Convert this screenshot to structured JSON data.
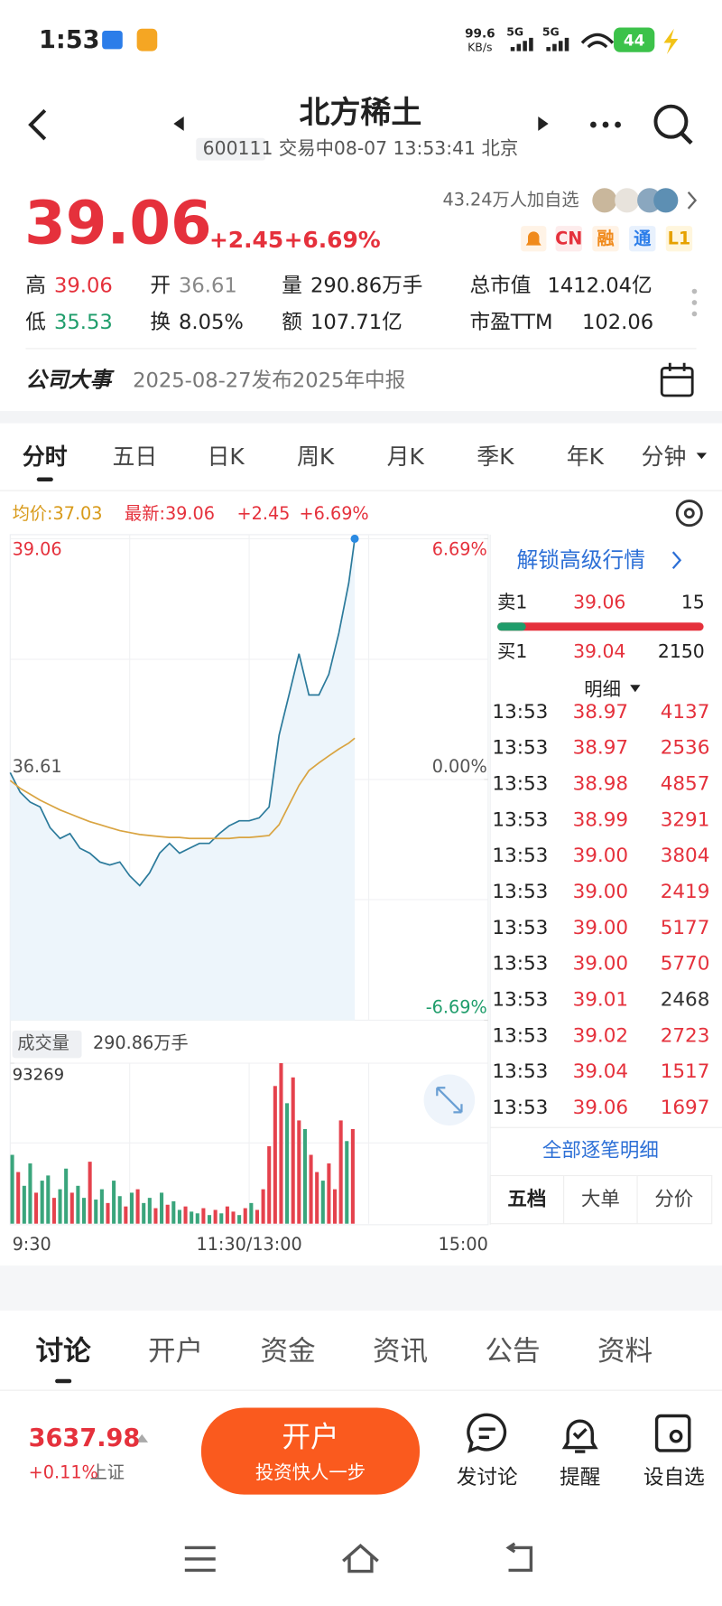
{
  "status_bar": {
    "time": "1:53",
    "speed": "99.6",
    "speed_unit": "KB/s",
    "network_1": "5G",
    "network_2": "5G",
    "battery": "44"
  },
  "header": {
    "title": "北方稀土",
    "subtitle": "600111 交易中08-07 13:53:41 北京"
  },
  "quote": {
    "price": "39.06",
    "change": "+2.45",
    "change_pct": "+6.69%",
    "followers": "43.24万人加自选",
    "badges": [
      "CN",
      "融",
      "通",
      "L1"
    ],
    "stats": [
      [
        {
          "label": "高",
          "value": "39.06"
        },
        {
          "label": "开",
          "value": "36.61"
        },
        {
          "label": "量",
          "value": "290.86万手"
        },
        {
          "label": "总市值",
          "value": "1412.04亿"
        }
      ],
      [
        {
          "label": "低",
          "value": "35.53"
        },
        {
          "label": "换",
          "value": "8.05%"
        },
        {
          "label": "额",
          "value": "107.71亿"
        },
        {
          "label": "市盈TTM",
          "value": "102.06"
        }
      ]
    ]
  },
  "event": {
    "label": "公司大事",
    "text": "2025-08-27发布2025年中报"
  },
  "period_tabs": [
    "分时",
    "五日",
    "日K",
    "周K",
    "月K",
    "季K",
    "年K",
    "分钟"
  ],
  "chart_data": [
    {
      "type": "line",
      "avg_label": "均价:37.03",
      "latest_label": "最新:39.06",
      "change": "+2.45",
      "change_pct": "+6.69%",
      "x": [
        "9:30",
        "9:35",
        "9:40",
        "9:45",
        "9:50",
        "9:55",
        "10:00",
        "10:05",
        "10:10",
        "10:15",
        "10:20",
        "10:25",
        "10:30",
        "10:35",
        "10:40",
        "10:45",
        "10:50",
        "10:55",
        "11:00",
        "11:05",
        "11:10",
        "11:15",
        "11:20",
        "11:25",
        "11:30",
        "13:05",
        "13:10",
        "13:15",
        "13:20",
        "13:25",
        "13:30",
        "13:35",
        "13:40",
        "13:45",
        "13:50",
        "13:53"
      ],
      "series": [
        {
          "color": "#2b7a9b",
          "values": [
            36.68,
            36.48,
            36.38,
            36.33,
            36.12,
            36.01,
            36.06,
            35.91,
            35.86,
            35.77,
            35.74,
            35.77,
            35.63,
            35.53,
            35.66,
            35.86,
            35.96,
            35.86,
            35.91,
            35.96,
            35.96,
            36.06,
            36.14,
            36.19,
            36.19,
            36.22,
            36.33,
            37.06,
            37.47,
            37.89,
            37.47,
            37.47,
            37.68,
            38.1,
            38.61,
            39.06
          ]
        },
        {
          "color": "#d9a441",
          "values": [
            36.6,
            36.52,
            36.46,
            36.4,
            36.35,
            36.3,
            36.26,
            36.22,
            36.18,
            36.15,
            36.12,
            36.09,
            36.07,
            36.05,
            36.04,
            36.03,
            36.02,
            36.02,
            36.01,
            36.01,
            36.01,
            36.01,
            36.01,
            36.02,
            36.02,
            36.03,
            36.04,
            36.15,
            36.35,
            36.55,
            36.7,
            36.78,
            36.85,
            36.92,
            36.98,
            37.03
          ]
        }
      ],
      "area_color": "#edf5fb",
      "up_color": "#e5313c",
      "down_color": "#1f9d6b",
      "ylim": [
        34.16,
        39.06
      ],
      "yticks": [
        39.06,
        36.61,
        34.16
      ],
      "y2lim": [
        -6.69,
        6.69
      ],
      "y2ticks": [
        {
          "value": 6.69,
          "label": "6.69%"
        },
        {
          "value": 0,
          "label": "0.00%"
        },
        {
          "value": -6.69,
          "label": "-6.69%"
        }
      ],
      "xticks": [
        "9:30",
        "11:30/13:00",
        "15:00"
      ]
    },
    {
      "type": "bar",
      "label": "成交量",
      "total": "290.86万手",
      "x": [
        "9:30",
        "9:33",
        "9:36",
        "9:39",
        "9:42",
        "9:45",
        "9:48",
        "9:51",
        "9:54",
        "9:57",
        "10:00",
        "10:03",
        "10:06",
        "10:09",
        "10:12",
        "10:15",
        "10:18",
        "10:21",
        "10:24",
        "10:27",
        "10:30",
        "10:33",
        "10:36",
        "10:39",
        "10:42",
        "10:45",
        "10:48",
        "10:51",
        "10:54",
        "10:57",
        "11:00",
        "11:03",
        "11:06",
        "11:09",
        "11:12",
        "11:15",
        "11:18",
        "11:21",
        "11:24",
        "11:27",
        "11:30",
        "13:03",
        "13:06",
        "13:09",
        "13:12",
        "13:15",
        "13:18",
        "13:21",
        "13:24",
        "13:27",
        "13:30",
        "13:33",
        "13:36",
        "13:39",
        "13:42",
        "13:45",
        "13:48",
        "13:51"
      ],
      "values": [
        40000,
        30000,
        22000,
        35000,
        18000,
        25000,
        28000,
        15000,
        20000,
        32000,
        18000,
        22000,
        15000,
        36000,
        14000,
        20000,
        12000,
        25000,
        16000,
        10000,
        18000,
        20000,
        12000,
        15000,
        9000,
        18000,
        11000,
        13000,
        8000,
        10000,
        7000,
        6000,
        9000,
        5000,
        8000,
        6000,
        10000,
        7000,
        5000,
        9000,
        12000,
        8000,
        20000,
        45000,
        80000,
        93269,
        70000,
        85000,
        60000,
        55000,
        40000,
        30000,
        25000,
        35000,
        20000,
        60000,
        48000,
        55000
      ],
      "colors": [
        "#3aa57c",
        "#e5424d",
        "#3aa57c",
        "#3aa57c",
        "#e5424d",
        "#3aa57c",
        "#3aa57c",
        "#e5424d",
        "#3aa57c",
        "#3aa57c",
        "#e5424d",
        "#3aa57c",
        "#3aa57c",
        "#e5424d",
        "#3aa57c",
        "#3aa57c",
        "#e5424d",
        "#3aa57c",
        "#3aa57c",
        "#e5424d",
        "#3aa57c",
        "#e5424d",
        "#3aa57c",
        "#3aa57c",
        "#e5424d",
        "#3aa57c",
        "#e5424d",
        "#3aa57c",
        "#3aa57c",
        "#e5424d",
        "#3aa57c",
        "#3aa57c",
        "#e5424d",
        "#3aa57c",
        "#e5424d",
        "#3aa57c",
        "#e5424d",
        "#e5424d",
        "#3aa57c",
        "#e5424d",
        "#3aa57c",
        "#e5424d",
        "#e5424d",
        "#e5424d",
        "#e5424d",
        "#e5424d",
        "#3aa57c",
        "#e5424d",
        "#e5424d",
        "#3aa57c",
        "#e5424d",
        "#e5424d",
        "#3aa57c",
        "#e5424d",
        "#e5424d",
        "#e5424d",
        "#3aa57c",
        "#e5424d"
      ],
      "ylim": [
        0,
        93269
      ],
      "yticks": [
        93269
      ]
    }
  ],
  "order_book": {
    "unlock": "解锁高级行情",
    "sell": {
      "label": "卖1",
      "price": "39.06",
      "volume": "15"
    },
    "buy": {
      "label": "买1",
      "price": "39.04",
      "volume": "2150"
    },
    "detail": "明细",
    "trades": [
      [
        "13:53",
        "38.97",
        "4137"
      ],
      [
        "13:53",
        "38.97",
        "2536"
      ],
      [
        "13:53",
        "38.98",
        "4857"
      ],
      [
        "13:53",
        "38.99",
        "3291"
      ],
      [
        "13:53",
        "39.00",
        "3804"
      ],
      [
        "13:53",
        "39.00",
        "2419"
      ],
      [
        "13:53",
        "39.00",
        "5177"
      ],
      [
        "13:53",
        "39.00",
        "5770"
      ],
      [
        "13:53",
        "39.01",
        "2468"
      ],
      [
        "13:53",
        "39.02",
        "2723"
      ],
      [
        "13:53",
        "39.04",
        "1517"
      ],
      [
        "13:53",
        "39.06",
        "1697"
      ]
    ],
    "all_trades": "全部逐笔明细",
    "tabs": [
      "五档",
      "大单",
      "分价"
    ]
  },
  "content_tabs": [
    "讨论",
    "开户",
    "资金",
    "资讯",
    "公告",
    "资料"
  ],
  "footer": {
    "index_value": "3637.98",
    "index_change": "+0.11%",
    "index_name": "上证",
    "cta": "开户",
    "cta_sub": "投资快人一步",
    "actions": [
      "发讨论",
      "提醒",
      "设自选"
    ]
  }
}
